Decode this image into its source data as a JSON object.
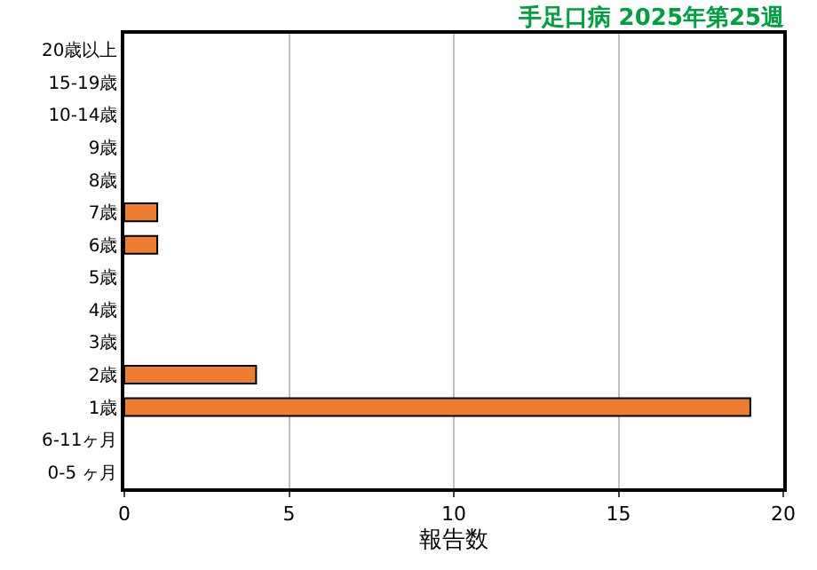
{
  "chart_data": {
    "type": "bar",
    "orientation": "horizontal",
    "title": "手足口病 2025年第25週",
    "xlabel": "報告数",
    "categories": [
      "20歳以上",
      "15-19歳",
      "10-14歳",
      "9歳",
      "8歳",
      "7歳",
      "6歳",
      "5歳",
      "4歳",
      "3歳",
      "2歳",
      "1歳",
      "6-11ヶ月",
      "0-5 ヶ月"
    ],
    "values": [
      0,
      0,
      0,
      0,
      0,
      1,
      1,
      0,
      0,
      0,
      4,
      19,
      0,
      0
    ],
    "color": "#ed7d31",
    "xlim": [
      0,
      20
    ],
    "xticks": [
      0,
      5,
      10,
      15,
      20
    ],
    "grid": "x",
    "legend": false
  }
}
